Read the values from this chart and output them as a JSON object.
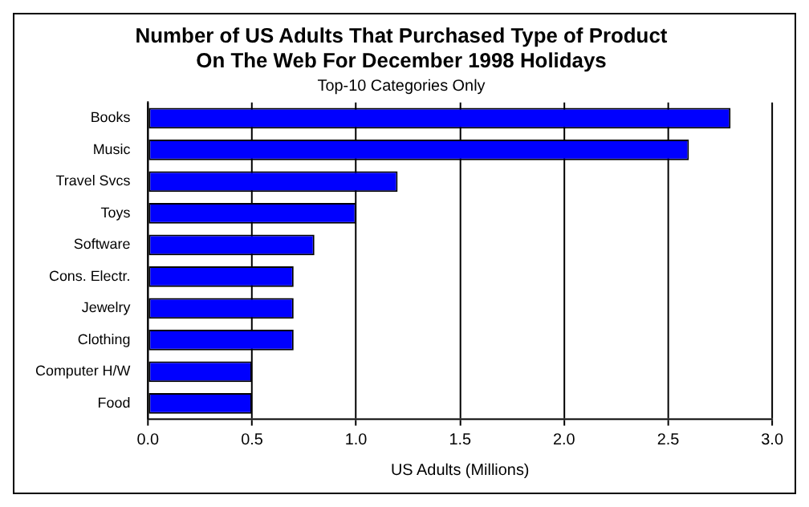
{
  "chart_data": {
    "type": "bar",
    "orientation": "horizontal",
    "title": "Number of US Adults That Purchased Type of Product\nOn The Web For December 1998 Holidays",
    "subtitle": "Top-10 Categories Only",
    "xlabel": "US Adults (Millions)",
    "categories": [
      "Books",
      "Music",
      "Travel Svcs",
      "Toys",
      "Software",
      "Cons. Electr.",
      "Jewelry",
      "Clothing",
      "Computer H/W",
      "Food"
    ],
    "values": [
      2.8,
      2.6,
      1.2,
      1.0,
      0.8,
      0.7,
      0.7,
      0.7,
      0.5,
      0.5
    ],
    "color": "#0000ff",
    "xlim": [
      0,
      3
    ],
    "xticks": [
      {
        "value": 0,
        "label": "0.0"
      },
      {
        "value": 0.5,
        "label": "0.5"
      },
      {
        "value": 1,
        "label": "1.0"
      },
      {
        "value": 1.5,
        "label": "1.5"
      },
      {
        "value": 2,
        "label": "2.0"
      },
      {
        "value": 2.5,
        "label": "2.5"
      },
      {
        "value": 3,
        "label": "3.0"
      }
    ],
    "grid": "x",
    "legend": false
  }
}
